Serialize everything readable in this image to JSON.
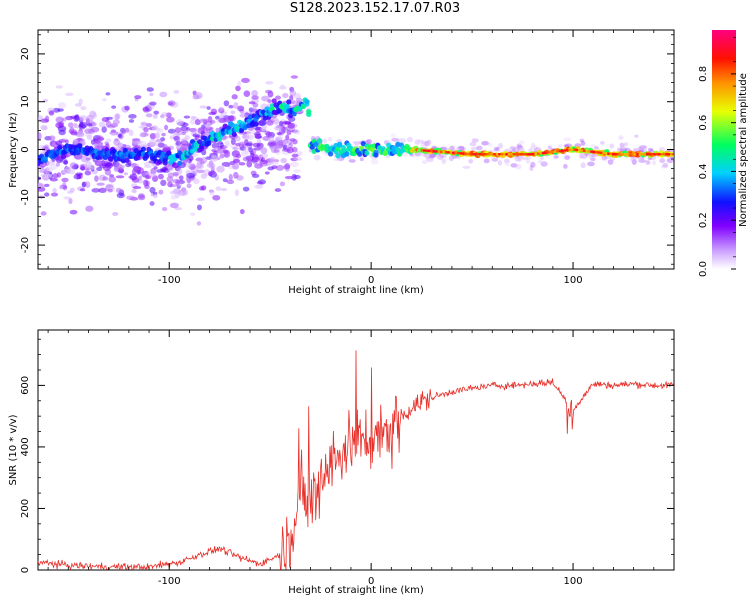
{
  "title": "S128.2023.152.17.07.R03",
  "chart_data": [
    {
      "type": "heatmap",
      "panel": "top",
      "xlabel": "Height of straight line (km)",
      "ylabel": "Frequency (Hz)",
      "xlim": [
        -165,
        150
      ],
      "ylim": [
        -25,
        25
      ],
      "x_ticks": [
        -100,
        0,
        100
      ],
      "y_ticks": [
        -20,
        -10,
        0,
        10,
        20
      ],
      "colorbar": {
        "label": "Normalized spectral amplitude",
        "range": [
          0,
          0.98
        ],
        "ticks": [
          0.0,
          0.2,
          0.4,
          0.6,
          0.8
        ],
        "colors": [
          "#ffffff",
          "#d9b3ff",
          "#8000ff",
          "#0000ff",
          "#00c0ff",
          "#00ff80",
          "#ffff00",
          "#ff8000",
          "#ff0000",
          "#ff0080"
        ]
      },
      "ridge": {
        "x": [
          -165,
          -150,
          -130,
          -110,
          -95,
          -85,
          -75,
          -65,
          -55,
          -45,
          -38,
          -32,
          -30,
          -38,
          -30,
          -20,
          -10,
          0,
          20,
          50,
          80,
          100,
          120,
          150
        ],
        "frequency": [
          -2,
          0,
          -1,
          -1,
          -2,
          1,
          3,
          5,
          7,
          9,
          8,
          10,
          6,
          4,
          1,
          0,
          0,
          0,
          0,
          -1,
          -1,
          0,
          -1,
          -1
        ]
      }
    },
    {
      "type": "line",
      "panel": "bottom",
      "xlabel": "Height of straight line (km)",
      "ylabel": "SNR (10 * v/v)",
      "xlim": [
        -165,
        150
      ],
      "ylim": [
        0,
        780
      ],
      "x_ticks": [
        -100,
        0,
        100
      ],
      "y_ticks": [
        0,
        200,
        400,
        600
      ],
      "series": [
        {
          "color": "#e8302a",
          "x": [
            -165,
            -150,
            -130,
            -110,
            -95,
            -85,
            -75,
            -65,
            -55,
            -45,
            -40,
            -35,
            -30,
            -25,
            -20,
            -15,
            -10,
            -5,
            0,
            5,
            10,
            15,
            20,
            30,
            40,
            50,
            60,
            70,
            80,
            90,
            100,
            110,
            120,
            130,
            140,
            150
          ],
          "y": [
            25,
            15,
            10,
            10,
            25,
            50,
            70,
            40,
            20,
            50,
            120,
            250,
            200,
            300,
            350,
            380,
            420,
            420,
            430,
            450,
            460,
            500,
            530,
            560,
            580,
            590,
            600,
            600,
            605,
            610,
            520,
            605,
            600,
            605,
            600,
            600
          ]
        }
      ]
    }
  ]
}
